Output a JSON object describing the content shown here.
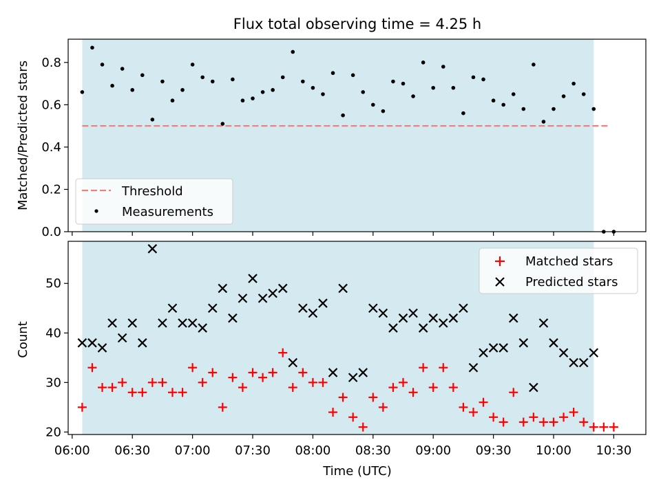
{
  "chart_data": [
    {
      "type": "scatter",
      "title": "Flux total observing time = 4.25 h",
      "ylabel": "Matched/Predicted stars",
      "xlabel": "",
      "ylim": [
        0,
        0.91
      ],
      "xlim": [
        "05:58",
        "10:46"
      ],
      "yticks": [
        0.0,
        0.2,
        0.4,
        0.6,
        0.8
      ],
      "ytick_labels": [
        "0.0",
        "0.2",
        "0.4",
        "0.6",
        "0.8"
      ],
      "shaded_interval": {
        "start": "06:05",
        "end": "10:20",
        "color": "#d4eaf0"
      },
      "legend_position": "lower-left",
      "threshold": {
        "name": "Threshold",
        "value": 0.5,
        "x_start": "06:05",
        "x_end": "10:27",
        "color": "#f08080",
        "style": "dashed"
      },
      "series": [
        {
          "name": "Measurements",
          "color": "#000000",
          "marker": "dot",
          "x": [
            "06:05",
            "06:10",
            "06:15",
            "06:20",
            "06:25",
            "06:30",
            "06:35",
            "06:40",
            "06:45",
            "06:50",
            "06:55",
            "07:00",
            "07:05",
            "07:10",
            "07:15",
            "07:20",
            "07:25",
            "07:30",
            "07:35",
            "07:40",
            "07:45",
            "07:50",
            "07:55",
            "08:00",
            "08:05",
            "08:10",
            "08:15",
            "08:20",
            "08:25",
            "08:30",
            "08:35",
            "08:40",
            "08:45",
            "08:50",
            "08:55",
            "09:00",
            "09:05",
            "09:10",
            "09:15",
            "09:20",
            "09:25",
            "09:30",
            "09:35",
            "09:40",
            "09:45",
            "09:50",
            "09:55",
            "10:00",
            "10:05",
            "10:10",
            "10:15",
            "10:20",
            "10:25",
            "10:30"
          ],
          "y": [
            0.66,
            0.87,
            0.79,
            0.69,
            0.77,
            0.67,
            0.74,
            0.53,
            0.71,
            0.62,
            0.67,
            0.79,
            0.73,
            0.71,
            0.51,
            0.72,
            0.62,
            0.63,
            0.66,
            0.67,
            0.73,
            0.85,
            0.71,
            0.68,
            0.65,
            0.75,
            0.55,
            0.74,
            0.66,
            0.6,
            0.57,
            0.71,
            0.7,
            0.64,
            0.8,
            0.68,
            0.78,
            0.68,
            0.56,
            0.73,
            0.72,
            0.62,
            0.6,
            0.65,
            0.58,
            0.79,
            0.52,
            0.58,
            0.64,
            0.7,
            0.65,
            0.58,
            0.0,
            0.0
          ]
        }
      ]
    },
    {
      "type": "scatter",
      "title": "",
      "ylabel": "Count",
      "xlabel": "Time (UTC)",
      "ylim": [
        19.5,
        58.5
      ],
      "xlim": [
        "05:58",
        "10:46"
      ],
      "yticks": [
        20,
        30,
        40,
        50
      ],
      "ytick_labels": [
        "20",
        "30",
        "40",
        "50"
      ],
      "xticks": [
        "06:00",
        "06:30",
        "07:00",
        "07:30",
        "08:00",
        "08:30",
        "09:00",
        "09:30",
        "10:00",
        "10:30"
      ],
      "xtick_labels": [
        "06:00",
        "06:30",
        "07:00",
        "07:30",
        "08:00",
        "08:30",
        "09:00",
        "09:30",
        "10:00",
        "10:30"
      ],
      "shaded_interval": {
        "start": "06:05",
        "end": "10:20",
        "color": "#d4eaf0"
      },
      "legend_position": "upper-right",
      "series": [
        {
          "name": "Matched stars",
          "color": "#ff0000",
          "marker": "plus",
          "x": [
            "06:05",
            "06:10",
            "06:15",
            "06:20",
            "06:25",
            "06:30",
            "06:35",
            "06:40",
            "06:45",
            "06:50",
            "06:55",
            "07:00",
            "07:05",
            "07:10",
            "07:15",
            "07:20",
            "07:25",
            "07:30",
            "07:35",
            "07:40",
            "07:45",
            "07:50",
            "07:55",
            "08:00",
            "08:05",
            "08:10",
            "08:15",
            "08:20",
            "08:25",
            "08:30",
            "08:35",
            "08:40",
            "08:45",
            "08:50",
            "08:55",
            "09:00",
            "09:05",
            "09:10",
            "09:15",
            "09:20",
            "09:25",
            "09:30",
            "09:35",
            "09:40",
            "09:45",
            "09:50",
            "09:55",
            "10:00",
            "10:05",
            "10:10",
            "10:15",
            "10:20",
            "10:25",
            "10:30"
          ],
          "y": [
            25,
            33,
            29,
            29,
            30,
            28,
            28,
            30,
            30,
            28,
            28,
            33,
            30,
            32,
            25,
            31,
            29,
            32,
            31,
            32,
            36,
            29,
            32,
            30,
            30,
            24,
            27,
            23,
            21,
            27,
            25,
            29,
            30,
            28,
            33,
            29,
            33,
            29,
            25,
            24,
            26,
            23,
            22,
            28,
            22,
            23,
            22,
            22,
            23,
            24,
            22,
            21,
            21,
            21
          ]
        },
        {
          "name": "Predicted stars",
          "color": "#000000",
          "marker": "x",
          "x": [
            "06:05",
            "06:10",
            "06:15",
            "06:20",
            "06:25",
            "06:30",
            "06:35",
            "06:40",
            "06:45",
            "06:50",
            "06:55",
            "07:00",
            "07:05",
            "07:10",
            "07:15",
            "07:20",
            "07:25",
            "07:30",
            "07:35",
            "07:40",
            "07:45",
            "07:50",
            "07:55",
            "08:00",
            "08:05",
            "08:10",
            "08:15",
            "08:20",
            "08:25",
            "08:30",
            "08:35",
            "08:40",
            "08:45",
            "08:50",
            "08:55",
            "09:00",
            "09:05",
            "09:10",
            "09:15",
            "09:20",
            "09:25",
            "09:30",
            "09:35",
            "09:40",
            "09:45",
            "09:50",
            "09:55",
            "10:00",
            "10:05",
            "10:10",
            "10:15",
            "10:20"
          ],
          "y": [
            38,
            38,
            37,
            42,
            39,
            42,
            38,
            57,
            42,
            45,
            42,
            42,
            41,
            45,
            49,
            43,
            47,
            51,
            47,
            48,
            49,
            34,
            45,
            44,
            46,
            32,
            49,
            31,
            32,
            45,
            44,
            41,
            43,
            44,
            41,
            43,
            42,
            43,
            45,
            33,
            36,
            37,
            37,
            43,
            38,
            29,
            42,
            38,
            36,
            34,
            34,
            36
          ]
        }
      ]
    }
  ]
}
